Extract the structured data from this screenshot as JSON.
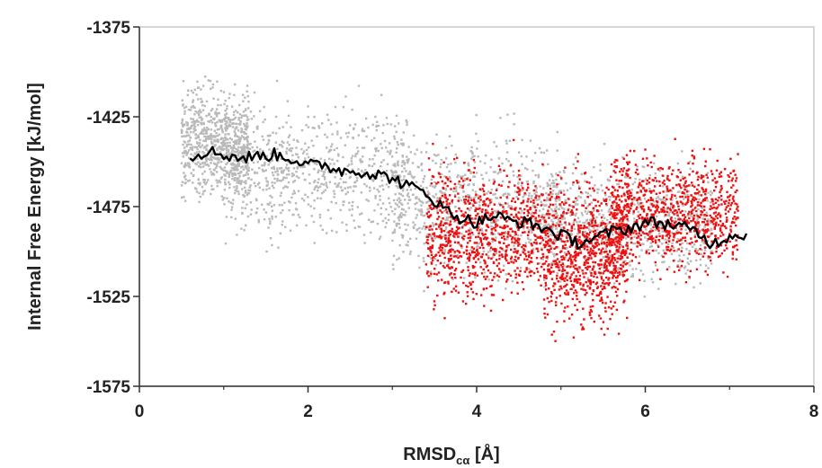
{
  "chart_data": {
    "type": "scatter",
    "title": "",
    "xlabel": "RMSD",
    "xlabel_subscript": "cα",
    "xlabel_unit": " [Å]",
    "ylabel": "Internal Free Energy [kJ/mol]",
    "xlim": [
      0,
      8
    ],
    "ylim": [
      -1575,
      -1375
    ],
    "x_ticks": [
      0,
      2,
      4,
      6,
      8
    ],
    "y_ticks": [
      -1375,
      -1425,
      -1475,
      -1525,
      -1575
    ],
    "grid": false,
    "legend": "none",
    "colors": {
      "gray_series": "#b9b9b9",
      "red_series": "#ee1111",
      "line": "#000000",
      "frame": "#c8c8c8",
      "axis": "#333333"
    },
    "series": [
      {
        "kind": "scatter",
        "color": "gray",
        "point_count": 3000,
        "clusters": [
          {
            "x_range": [
              0.5,
              1.3
            ],
            "y_center": -1440,
            "y_spread": 14
          },
          {
            "x_range": [
              1.0,
              3.2
            ],
            "y_center": -1455,
            "y_spread": 17
          },
          {
            "x_range": [
              3.0,
              5.0
            ],
            "y_center": -1475,
            "y_spread": 18
          },
          {
            "x_range": [
              4.8,
              6.8
            ],
            "y_center": -1485,
            "y_spread": 15
          }
        ]
      },
      {
        "kind": "scatter",
        "color": "red",
        "point_count": 2500,
        "clusters": [
          {
            "x_range": [
              3.4,
              4.8
            ],
            "y_center": -1490,
            "y_spread": 17
          },
          {
            "x_range": [
              4.8,
              5.8
            ],
            "y_center": -1500,
            "y_spread": 19
          },
          {
            "x_range": [
              5.6,
              7.1
            ],
            "y_center": -1478,
            "y_spread": 15
          }
        ]
      },
      {
        "kind": "line",
        "color": "black",
        "x": [
          0.6,
          0.8,
          1.0,
          1.2,
          1.4,
          1.6,
          1.8,
          2.0,
          2.2,
          2.4,
          2.6,
          2.8,
          3.0,
          3.2,
          3.4,
          3.6,
          3.8,
          4.0,
          4.2,
          4.4,
          4.6,
          4.8,
          5.0,
          5.2,
          5.4,
          5.6,
          5.8,
          6.0,
          6.2,
          6.4,
          6.6,
          6.8,
          7.0,
          7.2
        ],
        "y": [
          -1447,
          -1444,
          -1446,
          -1448,
          -1447,
          -1446,
          -1448,
          -1452,
          -1452,
          -1455,
          -1455,
          -1457,
          -1459,
          -1464,
          -1467,
          -1476,
          -1481,
          -1484,
          -1480,
          -1483,
          -1484,
          -1487,
          -1491,
          -1495,
          -1493,
          -1489,
          -1487,
          -1484,
          -1484,
          -1486,
          -1489,
          -1496,
          -1491,
          -1490
        ]
      }
    ]
  }
}
